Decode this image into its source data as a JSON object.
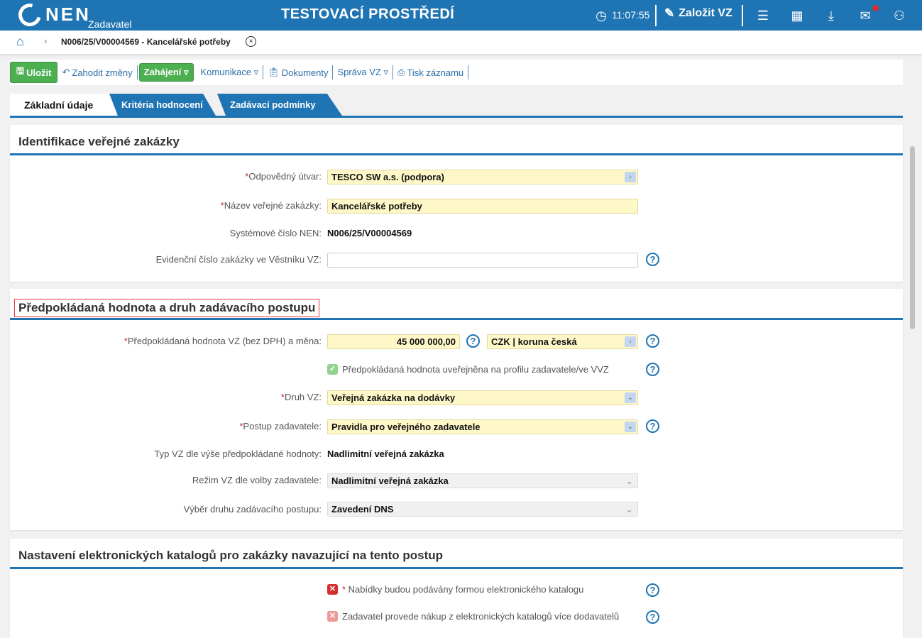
{
  "header": {
    "logo": "NEN",
    "logo_sub": "Zadavatel",
    "title": "TESTOVACÍ PROSTŘEDÍ",
    "time": "11:07:55",
    "create_label": "Založit VZ",
    "notification_color": "#d32f2f",
    "icons": [
      "clock-icon",
      "edit-icon",
      "menu-icon",
      "calendar-icon",
      "download-icon",
      "mail-icon",
      "user-icon"
    ]
  },
  "breadcrumb": {
    "current": "N006/25/V00004569 - Kancelářské potřeby"
  },
  "toolbar": {
    "save": "Uložit",
    "discard": "Zahodit změny",
    "start": "Zahájení ▿",
    "communication": "Komunikace ▿",
    "documents": "Dokumenty",
    "manage": "Správa VZ ▿",
    "print": "Tisk záznamu"
  },
  "tabs": [
    {
      "label": "Základní údaje",
      "active": true
    },
    {
      "label": "Kritéria hodnocení"
    },
    {
      "label": "Zadávací podmínky"
    }
  ],
  "section1": {
    "title": "Identifikace veřejné zakázky",
    "unit_label": "Odpovědný útvar:",
    "unit_value": "TESCO SW a.s. (podpora)",
    "name_label": "Název veřejné zakázky:",
    "name_value": "Kancelářské potřeby",
    "sysnum_label": "Systémové číslo NEN:",
    "sysnum_value": "N006/25/V00004569",
    "evid_label": "Evidenční číslo zakázky ve Věstníku VZ:",
    "evid_value": ""
  },
  "section2": {
    "title": "Předpokládaná hodnota a druh zadávacího postupu",
    "value_label": "Předpokládaná hodnota VZ (bez DPH) a měna:",
    "value": "45 000 000,00",
    "currency": "CZK | koruna česká",
    "published_label": "Předpokládaná hodnota uveřejněna na profilu zadavatele/ve VVZ",
    "published_checked": true,
    "kind_label": "Druh VZ:",
    "kind_value": "Veřejná zakázka na dodávky",
    "procedure_label": "Postup zadavatele:",
    "procedure_value": "Pravidla pro veřejného zadavatele",
    "type_label": "Typ VZ dle výše předpokládané hodnoty:",
    "type_value": "Nadlimitní veřejná zakázka",
    "regime_label": "Režim VZ dle volby zadavatele:",
    "regime_value": "Nadlimitní veřejná zakázka",
    "selection_label": "Výběr druhu zadávacího postupu:",
    "selection_value": "Zavedení DNS"
  },
  "section3": {
    "title": "Nastavení elektronických katalogů pro zakázky navazující na tento postup",
    "offers_label": "Nabídky budou podávány formou elektronického katalogu",
    "offers_checked": false,
    "purchase_label": "Zadavatel provede nákup z elektronických katalogů více dodavatelů",
    "purchase_checked": false
  },
  "colors": {
    "brand": "#1f74b3",
    "green": "#4caf50",
    "required": "#c62828",
    "field": "#fef8c8"
  }
}
